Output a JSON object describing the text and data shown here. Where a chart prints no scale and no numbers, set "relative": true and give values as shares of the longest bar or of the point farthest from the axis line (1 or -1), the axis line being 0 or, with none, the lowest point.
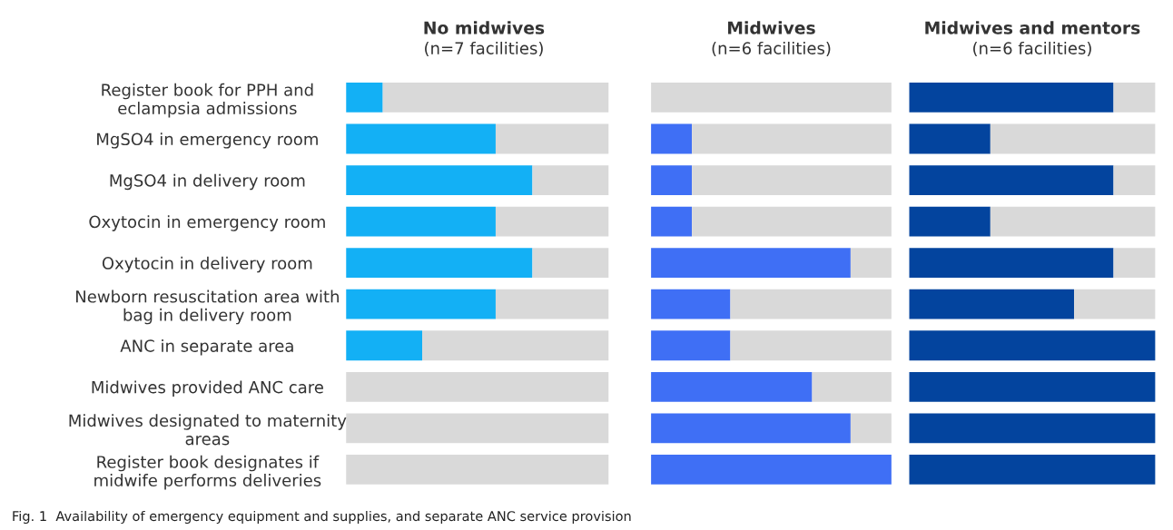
{
  "chart_data": [
    {
      "type": "bar",
      "orientation": "horizontal",
      "stacked": true,
      "relative": true,
      "title": "No midwives",
      "subtitle": "(n=7 facilities)",
      "categories": [
        "Register book for PPH and\neclampsia admissions",
        "MgSO4 in emergency room",
        "MgSO4 in delivery room",
        "Oxytocin in emergency room",
        "Oxytocin in delivery room",
        "Newborn resuscitation area with\nbag in delivery room",
        "ANC in separate area",
        "Midwives provided ANC care",
        "Midwives designated to maternity\nareas",
        "Register book designates if\nmidwife performs deliveries"
      ],
      "series": [
        {
          "color": "#13b0f5",
          "values": [
            0.14,
            0.57,
            0.71,
            0.57,
            0.71,
            0.57,
            0.29,
            0,
            0,
            0
          ]
        },
        {
          "color": "#d9d9d9",
          "values": [
            0.86,
            0.43,
            0.29,
            0.43,
            0.29,
            0.43,
            0.71,
            1,
            1,
            1
          ]
        }
      ],
      "tick_labels": "y",
      "annotations": [
        "Fig. 1  Availability of emergency equipment and supplies, and separate ANC service provision"
      ]
    },
    {
      "type": "bar",
      "orientation": "horizontal",
      "stacked": true,
      "relative": true,
      "title": "Midwives",
      "subtitle": "(n=6 facilities)",
      "categories": [
        null,
        null,
        null,
        null,
        null,
        null,
        null,
        null,
        null,
        null
      ],
      "series": [
        {
          "color": "#3f6ff5",
          "values": [
            0,
            0.17,
            0.17,
            0.17,
            0.83,
            0.33,
            0.33,
            0.67,
            0.83,
            1
          ]
        },
        {
          "color": "#d9d9d9",
          "values": [
            1,
            0.83,
            0.83,
            0.83,
            0.17,
            0.67,
            0.67,
            0.33,
            0.17,
            0
          ]
        }
      ],
      "tick_labels": false
    },
    {
      "type": "bar",
      "orientation": "horizontal",
      "stacked": true,
      "relative": true,
      "title": "Midwives and mentors",
      "subtitle": "(n=6 facilities)",
      "categories": [
        null,
        null,
        null,
        null,
        null,
        null,
        null,
        null,
        null,
        null
      ],
      "series": [
        {
          "color": "#03449e",
          "values": [
            0.83,
            0.33,
            0.83,
            0.33,
            0.83,
            0.67,
            1,
            1,
            1,
            1
          ]
        },
        {
          "color": "#d9d9d9",
          "values": [
            0.17,
            0.67,
            0.17,
            0.67,
            0.17,
            0.33,
            0,
            0,
            0,
            0
          ]
        }
      ],
      "tick_labels": false
    }
  ]
}
